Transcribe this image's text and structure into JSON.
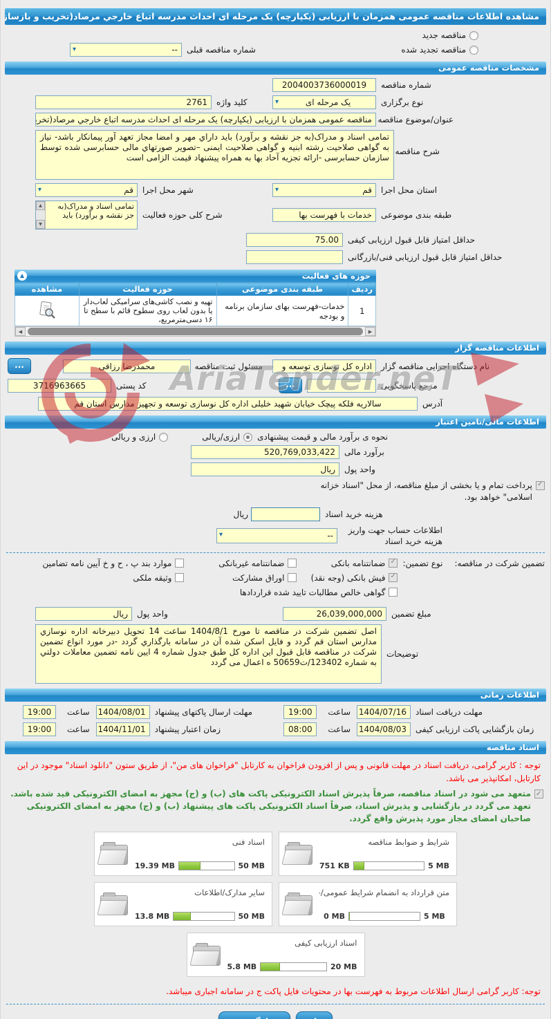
{
  "colors": {
    "accent_blue": "#2287c7",
    "input_yellow": "#ffffcc",
    "notice_red": "#ff0000",
    "notice_green": "#3a8f3a",
    "progress_green": "#8dc63f"
  },
  "icons": {
    "chevron_down": "▾",
    "arrow_up": "▲",
    "arrow_down": "▼",
    "arrow_left": "◀",
    "arrow_right": "▶",
    "collapse": "▲",
    "more": "..."
  },
  "titlebar": "مشاهده اطلاعات مناقصه عمومی همزمان با ارزیابی (یکپارچه) یک مرحله ای احداث مدرسه اتباع خارجي مرصاد(تخریب و بازسازی)",
  "top": {
    "new_radio": "مناقصه جدید",
    "renewed_radio": "مناقصه تجدید شده",
    "prev_label": "شماره مناقصه قبلی",
    "prev_value": "--"
  },
  "general": {
    "section_title": "مشخصات مناقصه عمومی",
    "number_label": "شماره مناقصه",
    "number": "2004003736000019",
    "type_label": "نوع برگزاری",
    "type_value": "یک مرحله ای",
    "keyword_label": "کلید واژه",
    "keyword": "2761",
    "subject_label": "عنوان/موضوع مناقصه",
    "subject": "مناقصه عمومی همزمان با ارزیابی (یکپارچه) یک مرحله ای احداث مدرسه اتباع خارجي مرصاد(تخریب و بازسازی)",
    "desc_label": "شرح مناقصه",
    "desc": "تمامی اسناد و مدراک(به جز نقشه و برآورد)  باید داراي مهر و امضا مجاز تعهد آور پیمانکار باشد- نیاز به گواهی صلاحیت رشته ابنیه و گواهی صلاحیت ایمنی –تصویر صورتهاي مالی حسابرسی شده توسط سازمان حسابرسی -ارائه تجزیه آحاد بها به همراه پیشنهاد قیمت الزامی است",
    "province_label": "استان محل اجرا",
    "province": "قم",
    "city_label": "شهر محل اجرا",
    "city": "قم",
    "category_label": "طبقه بندی موضوعی",
    "category": "خدمات با فهرست بها",
    "scope_label": "شرح کلی حوزه فعالیت",
    "scope": "تمامی اسناد و مدراک(به جز نقشه و برآورد)  باید",
    "min_quality_label": "حداقل امتیاز قابل قبول ارزیابی کیفی",
    "min_quality": "75.00",
    "min_technical_label": "حداقل امتیاز قابل قبول ارزیابی فنی/بازرگانی",
    "min_technical": ""
  },
  "activity_table": {
    "title": "حوزه های فعالیت",
    "col_row": "ردیف",
    "col_category": "طبقه بندی موضوعی",
    "col_field": "حوزه فعالیت",
    "col_view": "مشاهده",
    "rows": [
      {
        "row": "1",
        "category": "خدمات-فهرست بهای سازمان برنامه و بودجه",
        "field": "تهیه و نصب کاشی‌های سرامیکی لعاب‌دار یا بدون لعاب روی سطوح قائم با سطح تا ۱۶ دسی‌مترمربع،"
      }
    ]
  },
  "gozar": {
    "section_title": "اطلاعات مناقصه گزار",
    "agency_label": "نام دستگاه اجرایی مناقصه گزار",
    "agency": "اداره کل نوسازی   توسعه و",
    "registrar_label": "مسئول ثبت مناقصه",
    "registrar": "محمدرضا رزاقی",
    "ref_label": "مرجع پاسخگویی",
    "ref": "",
    "postal_label": "کد پستی",
    "postal": "3716963665",
    "address_label": "آدرس",
    "address": "سالاریه فلکه پیچک خیابان شهید  خلیلی اداره کل نوسازی توسعه و تجهیز مدارس استان قم"
  },
  "financial": {
    "section_title": "اطلاعات مالی/تامین اعتبار",
    "method_label": "نحوه ی برآورد مالی و قیمت پیشنهادی",
    "method_option1": "ارزی/ریالی",
    "method_option1_selected": true,
    "method_option2": "ارزی و ریالی",
    "estimate_label": "برآورد مالی",
    "estimate": "520,769,033,422",
    "currency_label": "واحد پول",
    "currency": "ریال",
    "treasury_checked": true,
    "treasury_note": "پرداخت تمام و یا بخشی از مبلغ مناقصه، از محل \"اسناد خزانه اسلامی\" خواهد بود.",
    "fee_label": "هزینه خرید اسناد",
    "fee_value": "",
    "fee_unit": "ریال",
    "account_label": "اطلاعات حساب جهت واریز هزینه خرید اسناد",
    "account_value": "--",
    "guarantee_label": "تضمین شرکت در مناقصه:",
    "guarantee_type_label": "نوع تضمین:",
    "guarantee_cols": [
      {
        "items": [
          {
            "label": "ضمانتنامه بانکی",
            "checked": true
          },
          {
            "label": "فیش بانکی (وجه نقد)",
            "checked": true
          },
          {
            "label": "گواهی خالص مطالبات تایید شده قراردادها",
            "checked": false
          }
        ]
      },
      {
        "items": [
          {
            "label": "ضمانتنامه غیربانکی",
            "checked": false
          },
          {
            "label": "اوراق مشارکت",
            "checked": false
          }
        ]
      },
      {
        "items": [
          {
            "label": "موارد بند پ ، ح و خ آیین نامه تضامین",
            "checked": false
          },
          {
            "label": "وثیقه ملکی",
            "checked": false
          }
        ]
      }
    ],
    "amount_label": "مبلغ تضمین",
    "amount": "26,039,000,000",
    "amount_currency_label": "واحد پول",
    "amount_currency": "ریال",
    "notes_label": "توضیحات",
    "notes": "اصل تضمین شرکت در مناقصه تا مورخ 1404/8/1 ساعت 14 تحویل دبیرخانه اداره نوسازي مدارس استان قم گردد و فایل اسکن شده آن در سامانه بارگذاري گردد -در مورد انواع تضمین شرکت در مناقصه قابل قبول این اداره کل طبق جدول شماره 4 ایین نامه تضمین معاملات دولتي به شماره 123402/ت50659 ه اعمال می گردد"
  },
  "time": {
    "section_title": "اطلاعات زمانی",
    "hour_label": "ساعت",
    "rows": [
      {
        "right_label": "مهلت دریافت اسناد",
        "right_date": "1404/07/16",
        "right_time": "19:00",
        "left_label": "مهلت ارسال پاکتهای پیشنهاد",
        "left_date": "1404/08/01",
        "left_time": "19:00"
      },
      {
        "right_label": "زمان بازگشایی پاکت ارزیابی کیفی",
        "right_date": "1404/08/03",
        "right_time": "08:00",
        "left_label": "زمان اعتبار پیشنهاد",
        "left_date": "1404/11/01",
        "left_time": "19:00"
      }
    ]
  },
  "docs": {
    "section_title": "اسناد مناقصه",
    "notice_top": "توجه : کاربر گرامی، دریافت اسناد در مهلت قانونی و پس از افزودن فراخوان به کارتابل \"فراخوان های من\"، از طریق ستون \"دانلود اسناد\" موجود در این کارتابل، امکانپذیر می باشد.",
    "commitment_checked": true,
    "commitment": "متعهد می شود در اسناد مناقصه، صرفاً پذیرش اسناد الکترونیکی پاکت های (ب) و (ج) مجهز به امضای الکترونیکی قید شده باشد. تعهد می گردد در بازگشایی و پذیرش اسناد، صرفاً اسناد الکترونیکی پاکت های پیشنهاد (ب) و (ج) مجهز به امضای الکترونیکی صاحبان امضای مجاز مورد پذیرش واقع گردد.",
    "files": [
      {
        "label": "شرایط و ضوابط مناقصه",
        "used": "751 KB",
        "max": "5 MB",
        "pct": 15
      },
      {
        "label": "اسناد فنی",
        "used": "19.39 MB",
        "max": "50 MB",
        "pct": 39
      },
      {
        "label": "متن قرارداد به انضمام شرایط عمومی/خصوصی",
        "used": "0 MB",
        "max": "5 MB",
        "pct": 0
      },
      {
        "label": "سایر مدارک/اطلاعات",
        "used": "13.8 MB",
        "max": "50 MB",
        "pct": 28
      },
      {
        "label": "اسناد ارزیابی کیفی",
        "used": "5.8 MB",
        "max": "20 MB",
        "pct": 29
      }
    ],
    "notice_bottom": "توجه: کاربر گرامی ارسال اطلاعات مربوط به فهرست بها در محتویات فایل پاکت ج در سامانه اجباری میباشد."
  },
  "buttons": {
    "print": "چاپ",
    "back": "بازگشت"
  },
  "watermark": "AriaTender.neT"
}
